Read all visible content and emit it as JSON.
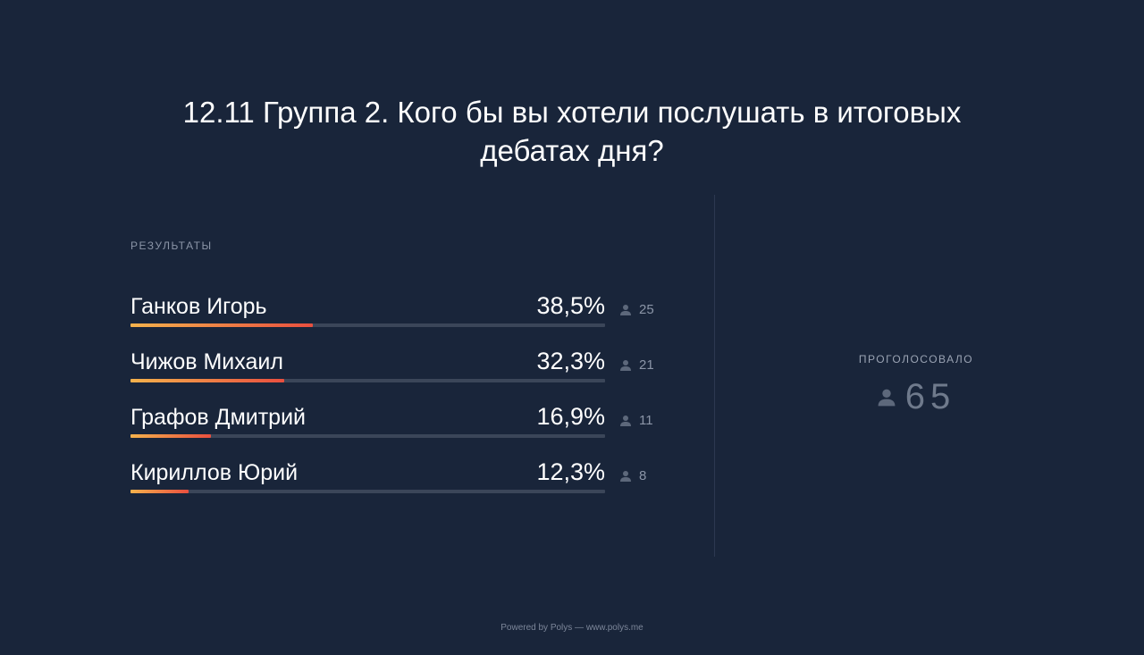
{
  "question": {
    "line1": "12.11 Группа 2. Кого бы вы хотели послушать в итоговых",
    "line2": "дебатах дня?"
  },
  "results_label": "РЕЗУЛЬТАТЫ",
  "results": [
    {
      "name": "Ганков Игорь",
      "percent_text": "38,5%",
      "percent": 38.5,
      "votes": "25"
    },
    {
      "name": "Чижов Михаил",
      "percent_text": "32,3%",
      "percent": 32.3,
      "votes": "21"
    },
    {
      "name": "Графов Дмитрий",
      "percent_text": "16,9%",
      "percent": 16.9,
      "votes": "11"
    },
    {
      "name": "Кириллов Юрий",
      "percent_text": "12,3%",
      "percent": 12.3,
      "votes": "8"
    }
  ],
  "voted": {
    "label": "ПРОГОЛОСОВАЛО",
    "count": "65"
  },
  "footer": "Powered by Polys — www.polys.me",
  "colors": {
    "background": "#19253a",
    "bar_gradient_start": "#f4b24c",
    "bar_gradient_end": "#e94f3f",
    "bar_track": "#3b4659"
  },
  "icons": {
    "vote_count": "person-icon"
  }
}
